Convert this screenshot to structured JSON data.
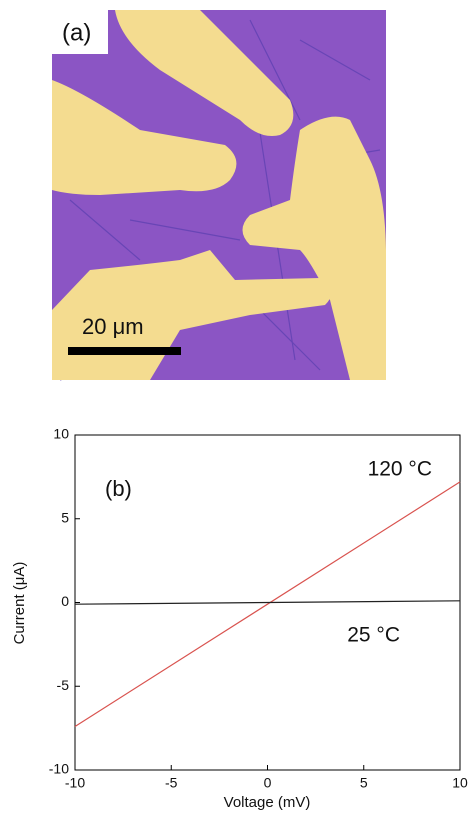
{
  "panel_a": {
    "label": "(a)",
    "scale_bar": "20 μm"
  },
  "chart_data": {
    "type": "line",
    "label": "(b)",
    "x_label": "Voltage (mV)",
    "y_label": "Current (μA)",
    "x": [
      -10,
      10
    ],
    "series": [
      {
        "name": "120 °C",
        "color": "#d9534f",
        "values": [
          -7.4,
          7.2
        ]
      },
      {
        "name": "25 °C",
        "color": "#222222",
        "values": [
          -0.1,
          0.1
        ]
      }
    ],
    "xlim": [
      -10,
      10
    ],
    "xticks": [
      -10,
      -5,
      0,
      5,
      10
    ],
    "ylim": [
      -10,
      10
    ],
    "yticks": [
      -10,
      -5,
      0,
      5,
      10
    ]
  }
}
